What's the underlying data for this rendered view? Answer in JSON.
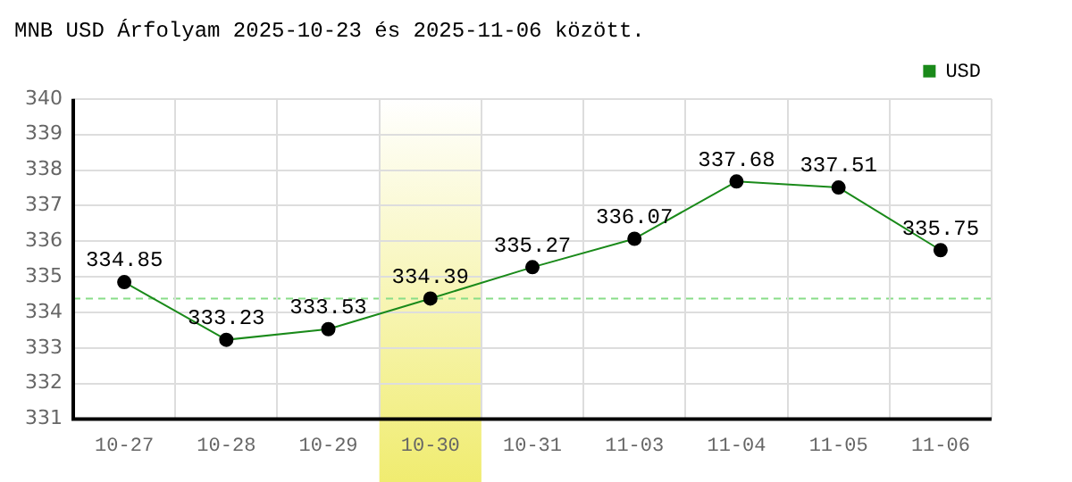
{
  "chart_data": {
    "type": "line",
    "title": "MNB USD Árfolyam 2025-10-23 és 2025-11-06 között.",
    "categories": [
      "10-27",
      "10-28",
      "10-29",
      "10-30",
      "10-31",
      "11-03",
      "11-04",
      "11-05",
      "11-06"
    ],
    "series": [
      {
        "name": "USD",
        "color": "#1a8a1a",
        "values": [
          334.85,
          333.23,
          333.53,
          334.39,
          335.27,
          336.07,
          337.68,
          337.51,
          335.75
        ]
      }
    ],
    "ylim": [
      331,
      340
    ],
    "yticks": [
      331,
      332,
      333,
      334,
      335,
      336,
      337,
      338,
      339,
      340
    ],
    "grid": true,
    "legend": "top right",
    "marker": "circle",
    "data_labels": true,
    "ref_lines": [
      {
        "axis": "y",
        "value": 334.39,
        "color": "#88dd88",
        "line_style": "dashed"
      }
    ],
    "bands": [
      {
        "axis": "x",
        "from": "10-30",
        "to": "10-30",
        "color": "#f0ec70"
      }
    ]
  }
}
